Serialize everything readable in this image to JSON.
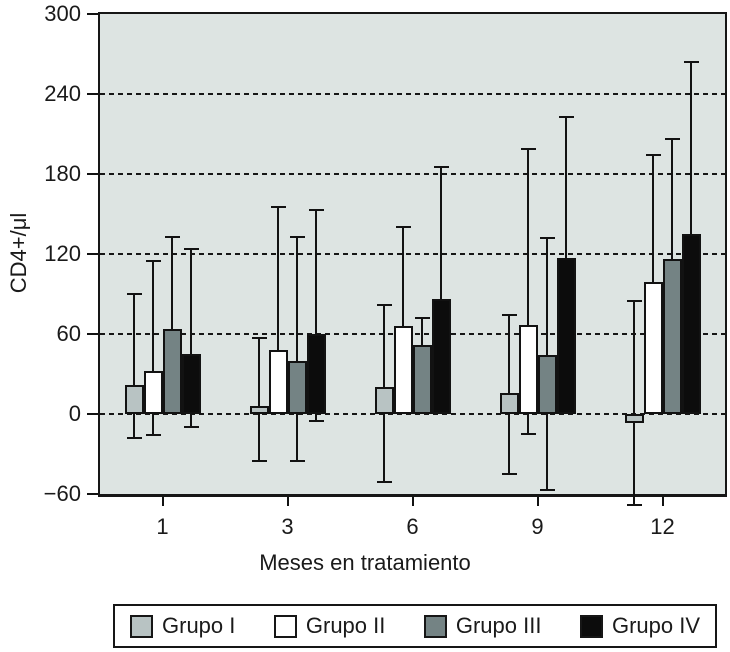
{
  "figure": {
    "colors": {
      "background": "#ffffff",
      "plot_background": "#dde4e2",
      "frame": "#161616",
      "text": "#1a1a1a",
      "legend_background": "#ffffff"
    }
  },
  "chart_data": {
    "type": "bar",
    "title": "",
    "xlabel": "Meses en tratamiento",
    "ylabel": "CD4+/μl",
    "ylim": [
      -60,
      300
    ],
    "yticks": [
      300,
      240,
      180,
      120,
      60,
      0,
      -60
    ],
    "gridlines": [
      240,
      180,
      120,
      60,
      0
    ],
    "grid_style": "dashed",
    "legend_position": "bottom",
    "categories": [
      "1",
      "3",
      "6",
      "9",
      "12"
    ],
    "series": [
      {
        "name": "Grupo I",
        "color": "#b8c3c3",
        "values": [
          22,
          6,
          20,
          16,
          -7
        ],
        "err_hi": [
          90,
          57,
          82,
          74,
          85
        ],
        "err_lo": [
          -18,
          -35,
          -51,
          -45,
          -68
        ]
      },
      {
        "name": "Grupo II",
        "color": "#ffffff",
        "values": [
          32,
          48,
          66,
          67,
          99
        ],
        "err_hi": [
          115,
          155,
          140,
          199,
          194
        ],
        "err_lo": [
          -16,
          null,
          null,
          -15,
          null
        ]
      },
      {
        "name": "Grupo III",
        "color": "#748384",
        "values": [
          64,
          40,
          52,
          44,
          116
        ],
        "err_hi": [
          133,
          133,
          72,
          132,
          206
        ],
        "err_lo": [
          null,
          -35,
          null,
          -57,
          null
        ]
      },
      {
        "name": "Grupo IV",
        "color": "#0c0c0c",
        "values": [
          45,
          60,
          86,
          117,
          135
        ],
        "err_hi": [
          124,
          153,
          185,
          223,
          264
        ],
        "err_lo": [
          -10,
          -5,
          null,
          null,
          null
        ]
      }
    ]
  }
}
